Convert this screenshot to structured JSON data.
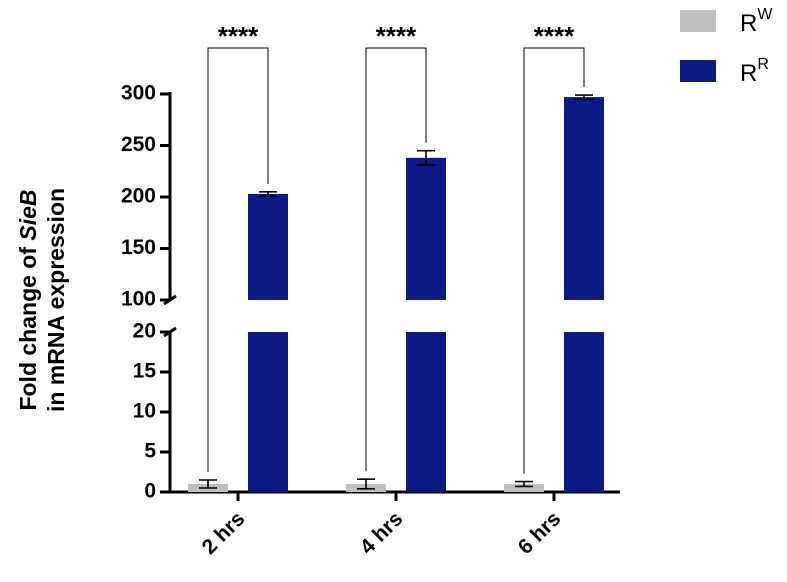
{
  "chart_data": {
    "type": "bar",
    "ylabel": {
      "line1": "Fold change of",
      "italic": "SieB",
      "line2": "in mRNA expression"
    },
    "categories": [
      "2 hrs",
      "4 hrs",
      "6 hrs"
    ],
    "series": [
      {
        "name": "R",
        "superscript": "W",
        "color": "#c0c0c0",
        "values": [
          1,
          1,
          1
        ],
        "errors": [
          0.5,
          0.6,
          0.3
        ]
      },
      {
        "name": "R",
        "superscript": "R",
        "color": "#0b1a84",
        "values": [
          203,
          238,
          297
        ],
        "errors": [
          2,
          7,
          2
        ]
      }
    ],
    "ylim": [
      0,
      20
    ],
    "yticks": [
      0,
      5,
      10,
      15,
      20
    ],
    "ylim_upper": [
      100,
      300
    ],
    "yticks_upper": [
      100,
      150,
      200,
      250,
      300
    ],
    "annotations": [
      "****",
      "****",
      "****"
    ],
    "legend": "upper right"
  }
}
